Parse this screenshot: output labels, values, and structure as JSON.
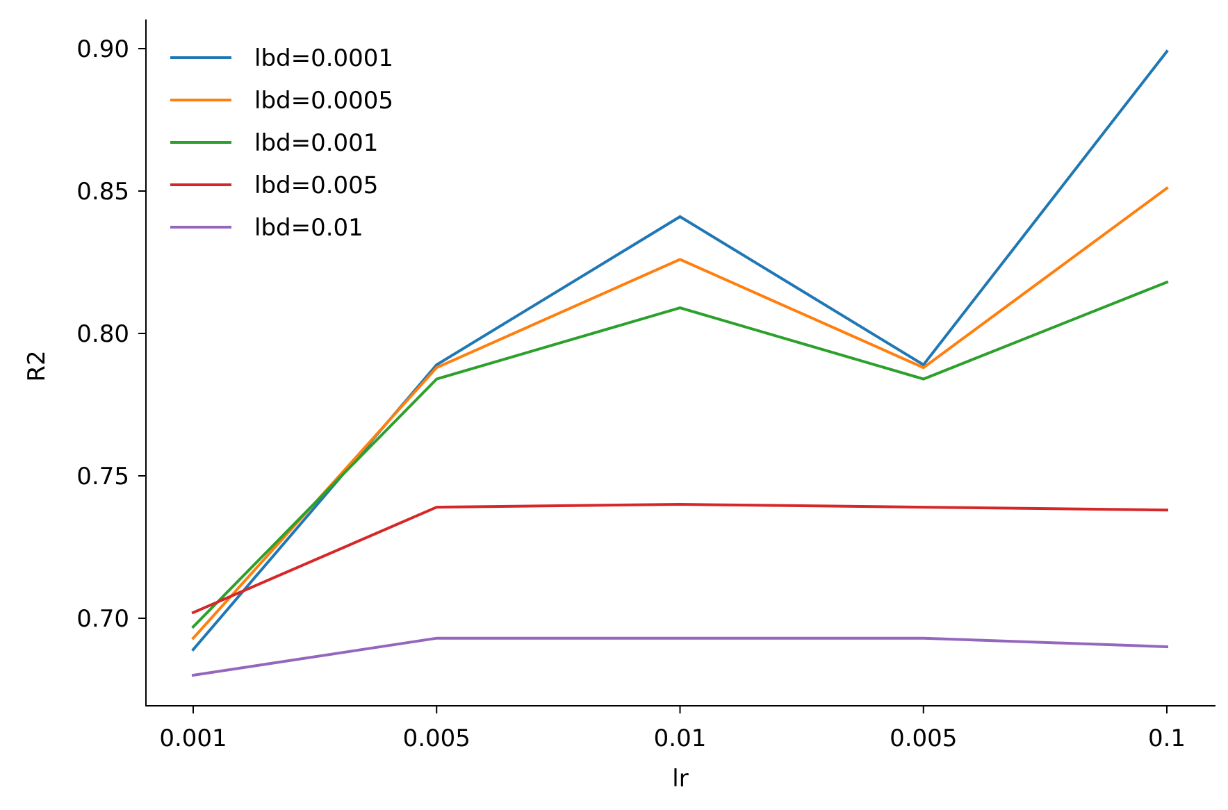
{
  "chart_data": {
    "type": "line",
    "title": "",
    "xlabel": "lr",
    "ylabel": "R2",
    "categories": [
      "0.001",
      "0.005",
      "0.01",
      "0.005",
      "0.1"
    ],
    "yticks": [
      "0.70",
      "0.75",
      "0.80",
      "0.85",
      "0.90"
    ],
    "ytick_values": [
      0.7,
      0.75,
      0.8,
      0.85,
      0.9
    ],
    "ylim": [
      0.67,
      0.91
    ],
    "grid": false,
    "legend_position": "upper-left",
    "series": [
      {
        "name": "lbd=0.0001",
        "color": "#1f77b4",
        "values": [
          0.689,
          0.789,
          0.841,
          0.789,
          0.899
        ]
      },
      {
        "name": "lbd=0.0005",
        "color": "#ff7f0e",
        "values": [
          0.693,
          0.788,
          0.826,
          0.788,
          0.851
        ]
      },
      {
        "name": "lbd=0.001",
        "color": "#2ca02c",
        "values": [
          0.697,
          0.784,
          0.809,
          0.784,
          0.818
        ]
      },
      {
        "name": "lbd=0.005",
        "color": "#d62728",
        "values": [
          0.702,
          0.739,
          0.74,
          0.739,
          0.738
        ]
      },
      {
        "name": "lbd=0.01",
        "color": "#9467bd",
        "values": [
          0.68,
          0.693,
          0.693,
          0.693,
          0.69
        ]
      }
    ]
  }
}
